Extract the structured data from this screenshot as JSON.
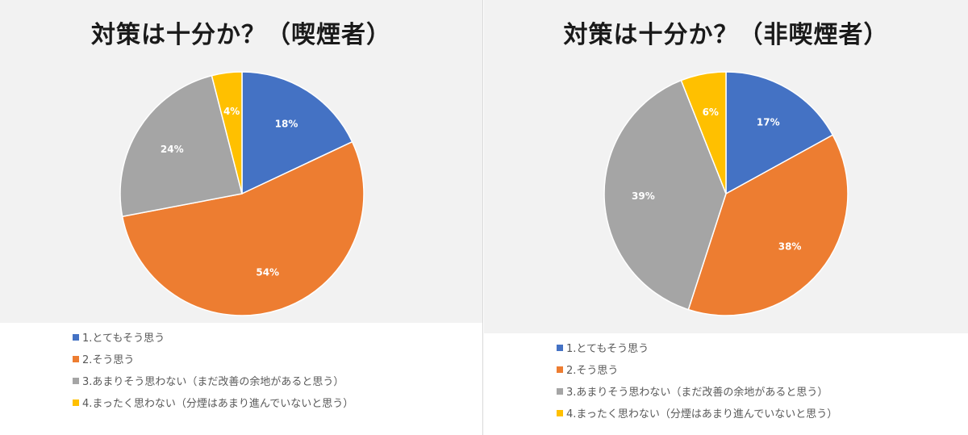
{
  "colors": [
    "#4472c4",
    "#ed7d31",
    "#a5a5a5",
    "#ffc000"
  ],
  "legend_labels": [
    "1.とてもそう思う",
    "2.そう思う",
    "3.あまりそう思わない（まだ改善の余地があると思う）",
    "4.まったく思わない（分煙はあまり進んでいないと思う）"
  ],
  "chart_data": [
    {
      "type": "pie",
      "title": "対策は十分か？（喫煙者）",
      "categories": [
        "1.とてもそう思う",
        "2.そう思う",
        "3.あまりそう思わない（まだ改善の余地があると思う）",
        "4.まったく思わない（分煙はあまり進んでいないと思う）"
      ],
      "values": [
        18,
        54,
        24,
        4
      ],
      "data_labels": [
        "18%",
        "54%",
        "24%",
        "4%"
      ],
      "legend_position": "bottom"
    },
    {
      "type": "pie",
      "title": "対策は十分か？（非喫煙者）",
      "categories": [
        "1.とてもそう思う",
        "2.そう思う",
        "3.あまりそう思わない（まだ改善の余地があると思う）",
        "4.まったく思わない（分煙はあまり進んでいないと思う）"
      ],
      "values": [
        17,
        38,
        39,
        6
      ],
      "data_labels": [
        "17%",
        "38%",
        "39%",
        "6%"
      ],
      "legend_position": "bottom"
    }
  ]
}
